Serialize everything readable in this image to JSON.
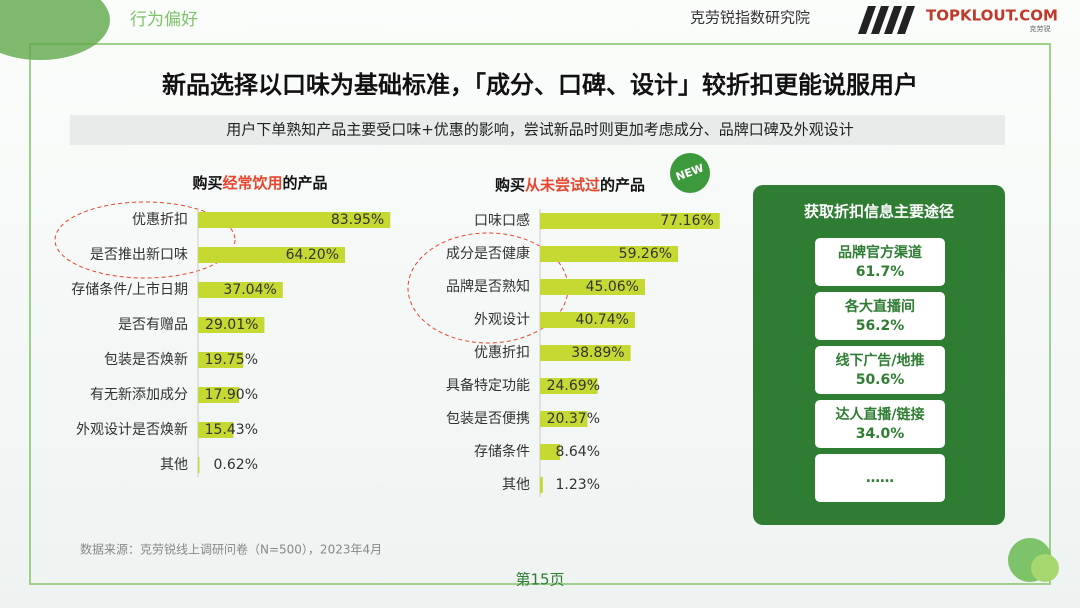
{
  "header": {
    "section": "行为偏好",
    "org": "克劳锐指数研究院",
    "logo": "TOPKLOUT.COM",
    "logo_sub": "克劳锐"
  },
  "title": "新品选择以口味为基础标准，「成分、口碑、设计」较折扣更能说服用户",
  "subtitle": "用户下单熟知产品主要受口味+优惠的影响，尝试新品时则更加考虑成分、品牌口碑及外观设计",
  "chart_data": [
    {
      "type": "bar",
      "orientation": "horizontal",
      "title": [
        "购买",
        "经常饮用",
        "的产品"
      ],
      "highlight_color": "#e8452c",
      "color": "#c5d932",
      "categories": [
        "优惠折扣",
        "是否推出新口味",
        "存储条件/上市日期",
        "是否有赠品",
        "包装是否焕新",
        "有无新添加成分",
        "外观设计是否焕新",
        "其他"
      ],
      "values": [
        83.95,
        64.2,
        37.04,
        29.01,
        19.75,
        17.9,
        15.43,
        0.62
      ],
      "value_labels": [
        "83.95%",
        "64.20%",
        "37.04%",
        "29.01%",
        "19.75%",
        "17.90%",
        "15.43%",
        "0.62%"
      ]
    },
    {
      "type": "bar",
      "orientation": "horizontal",
      "title": [
        "购买",
        "从未尝试过",
        "的产品"
      ],
      "highlight_color": "#e8452c",
      "color": "#c5d932",
      "badge": "NEW",
      "categories": [
        "口味口感",
        "成分是否健康",
        "品牌是否熟知",
        "外观设计",
        "优惠折扣",
        "具备特定功能",
        "包装是否便携",
        "存储条件",
        "其他"
      ],
      "values": [
        77.16,
        59.26,
        45.06,
        40.74,
        38.89,
        24.69,
        20.37,
        8.64,
        1.23
      ],
      "value_labels": [
        "77.16%",
        "59.26%",
        "45.06%",
        "40.74%",
        "38.89%",
        "24.69%",
        "20.37%",
        "8.64%",
        "1.23%"
      ]
    }
  ],
  "panel": {
    "title": "获取折扣信息主要途径",
    "items": [
      {
        "label": "品牌官方渠道",
        "value": "61.7%"
      },
      {
        "label": "各大直播间",
        "value": "56.2%"
      },
      {
        "label": "线下广告/地推",
        "value": "50.6%"
      },
      {
        "label": "达人直播/链接",
        "value": "34.0%"
      },
      {
        "label": "……"
      }
    ]
  },
  "source": "数据来源：克劳锐线上调研问卷（N=500），2023年4月",
  "page": "第15页"
}
